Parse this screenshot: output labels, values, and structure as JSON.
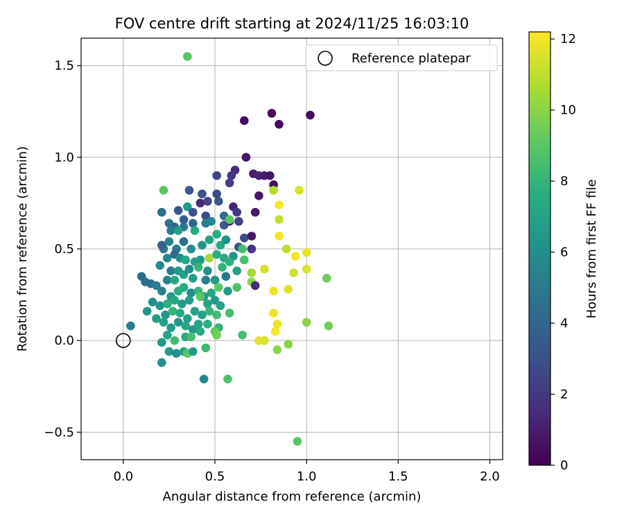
{
  "chart_data": {
    "type": "scatter",
    "title": "FOV centre drift starting at 2024/11/25 16:03:10",
    "xlabel": "Angular distance from reference (arcmin)",
    "ylabel": "Rotation from reference (arcmin)",
    "xlim": [
      -0.23,
      2.07
    ],
    "ylim": [
      -0.65,
      1.65
    ],
    "xticks": [
      0.0,
      0.5,
      1.0,
      1.5,
      2.0
    ],
    "xtick_labels": [
      "0.0",
      "0.5",
      "1.0",
      "1.5",
      "2.0"
    ],
    "yticks": [
      -0.5,
      0.0,
      0.5,
      1.0,
      1.5
    ],
    "ytick_labels": [
      "−0.5",
      "0.0",
      "0.5",
      "1.0",
      "1.5"
    ],
    "grid": true,
    "legend": {
      "placement": "upper right",
      "label": "Reference platepar",
      "marker": "open circle"
    },
    "reference_point": {
      "x": 0.0,
      "y": 0.0
    },
    "colorbar": {
      "label": "Hours from first FF file",
      "colormap": "viridis",
      "range": [
        0,
        12.2
      ],
      "ticks": [
        0,
        2,
        4,
        6,
        8,
        10,
        12
      ],
      "tick_labels": [
        "0",
        "2",
        "4",
        "6",
        "8",
        "10",
        "12"
      ]
    },
    "points": [
      {
        "x": 0.35,
        "y": 1.55,
        "t": 9.0
      },
      {
        "x": 0.81,
        "y": 1.24,
        "t": 0.3
      },
      {
        "x": 1.02,
        "y": 1.23,
        "t": 0.3
      },
      {
        "x": 0.66,
        "y": 1.2,
        "t": 0.5
      },
      {
        "x": 0.85,
        "y": 1.18,
        "t": 0.3
      },
      {
        "x": 0.67,
        "y": 1.0,
        "t": 0.7
      },
      {
        "x": 0.61,
        "y": 0.93,
        "t": 1.5
      },
      {
        "x": 0.51,
        "y": 0.9,
        "t": 2.5
      },
      {
        "x": 0.59,
        "y": 0.9,
        "t": 2.0
      },
      {
        "x": 0.71,
        "y": 0.91,
        "t": 1.0
      },
      {
        "x": 0.74,
        "y": 0.9,
        "t": 1.3
      },
      {
        "x": 0.77,
        "y": 0.9,
        "t": 0.9
      },
      {
        "x": 0.8,
        "y": 0.9,
        "t": 0.7
      },
      {
        "x": 0.58,
        "y": 0.86,
        "t": 2.2
      },
      {
        "x": 0.82,
        "y": 0.85,
        "t": 0.6
      },
      {
        "x": 0.36,
        "y": 0.82,
        "t": 3.5
      },
      {
        "x": 0.43,
        "y": 0.8,
        "t": 3.0
      },
      {
        "x": 0.51,
        "y": 0.8,
        "t": 2.8
      },
      {
        "x": 0.22,
        "y": 0.82,
        "t": 9.0
      },
      {
        "x": 0.74,
        "y": 0.79,
        "t": 0.8
      },
      {
        "x": 0.46,
        "y": 0.76,
        "t": 2.5
      },
      {
        "x": 0.52,
        "y": 0.76,
        "t": 3.2
      },
      {
        "x": 0.42,
        "y": 0.75,
        "t": 1.5
      },
      {
        "x": 0.6,
        "y": 0.73,
        "t": 1.2
      },
      {
        "x": 0.3,
        "y": 0.71,
        "t": 3.4
      },
      {
        "x": 0.35,
        "y": 0.73,
        "t": 6.5
      },
      {
        "x": 0.21,
        "y": 0.7,
        "t": 4.5
      },
      {
        "x": 0.38,
        "y": 0.7,
        "t": 3.0
      },
      {
        "x": 0.62,
        "y": 0.7,
        "t": 2.0
      },
      {
        "x": 0.72,
        "y": 0.7,
        "t": 0.9
      },
      {
        "x": 0.45,
        "y": 0.68,
        "t": 2.8
      },
      {
        "x": 0.33,
        "y": 0.66,
        "t": 3.6
      },
      {
        "x": 0.55,
        "y": 0.68,
        "t": 4.2
      },
      {
        "x": 0.25,
        "y": 0.64,
        "t": 4.5
      },
      {
        "x": 0.28,
        "y": 0.62,
        "t": 3.9
      },
      {
        "x": 0.33,
        "y": 0.62,
        "t": 4.8
      },
      {
        "x": 0.38,
        "y": 0.64,
        "t": 4.0
      },
      {
        "x": 0.45,
        "y": 0.64,
        "t": 5.0
      },
      {
        "x": 0.48,
        "y": 0.65,
        "t": 5.5
      },
      {
        "x": 0.55,
        "y": 0.63,
        "t": 3.3
      },
      {
        "x": 0.58,
        "y": 0.65,
        "t": 1.8
      },
      {
        "x": 0.63,
        "y": 0.65,
        "t": 2.4
      },
      {
        "x": 0.26,
        "y": 0.6,
        "t": 5.2
      },
      {
        "x": 0.3,
        "y": 0.6,
        "t": 6.9
      },
      {
        "x": 0.39,
        "y": 0.6,
        "t": 7.5
      },
      {
        "x": 0.51,
        "y": 0.58,
        "t": 7.6
      },
      {
        "x": 0.58,
        "y": 0.66,
        "t": 9.0
      },
      {
        "x": 0.66,
        "y": 0.56,
        "t": 2.7
      },
      {
        "x": 0.7,
        "y": 0.57,
        "t": 0.8
      },
      {
        "x": 0.22,
        "y": 0.5,
        "t": 4.7
      },
      {
        "x": 0.25,
        "y": 0.54,
        "t": 5.5
      },
      {
        "x": 0.29,
        "y": 0.5,
        "t": 5.0
      },
      {
        "x": 0.33,
        "y": 0.54,
        "t": 4.5
      },
      {
        "x": 0.37,
        "y": 0.5,
        "t": 6.0
      },
      {
        "x": 0.43,
        "y": 0.52,
        "t": 6.3
      },
      {
        "x": 0.47,
        "y": 0.55,
        "t": 7.0
      },
      {
        "x": 0.53,
        "y": 0.52,
        "t": 7.2
      },
      {
        "x": 0.56,
        "y": 0.55,
        "t": 6.2
      },
      {
        "x": 0.63,
        "y": 0.51,
        "t": 3.0
      },
      {
        "x": 0.65,
        "y": 0.5,
        "t": 8.5
      },
      {
        "x": 0.7,
        "y": 0.5,
        "t": 1.8
      },
      {
        "x": 0.21,
        "y": 0.52,
        "t": 3.6
      },
      {
        "x": 0.24,
        "y": 0.45,
        "t": 5.5
      },
      {
        "x": 0.28,
        "y": 0.47,
        "t": 4.2
      },
      {
        "x": 0.31,
        "y": 0.45,
        "t": 6.0
      },
      {
        "x": 0.34,
        "y": 0.44,
        "t": 7.2
      },
      {
        "x": 0.39,
        "y": 0.43,
        "t": 7.0
      },
      {
        "x": 0.42,
        "y": 0.44,
        "t": 6.6
      },
      {
        "x": 0.47,
        "y": 0.45,
        "t": 10.5
      },
      {
        "x": 0.51,
        "y": 0.47,
        "t": 7.5
      },
      {
        "x": 0.55,
        "y": 0.45,
        "t": 7.3
      },
      {
        "x": 0.6,
        "y": 0.46,
        "t": 6.3
      },
      {
        "x": 0.66,
        "y": 0.44,
        "t": 8.5
      },
      {
        "x": 0.2,
        "y": 0.41,
        "t": 5.7
      },
      {
        "x": 0.26,
        "y": 0.38,
        "t": 5.0
      },
      {
        "x": 0.3,
        "y": 0.38,
        "t": 6.5
      },
      {
        "x": 0.36,
        "y": 0.39,
        "t": 5.8
      },
      {
        "x": 0.41,
        "y": 0.4,
        "t": 8.0
      },
      {
        "x": 0.46,
        "y": 0.38,
        "t": 6.0
      },
      {
        "x": 0.54,
        "y": 0.4,
        "t": 8.0
      },
      {
        "x": 0.58,
        "y": 0.43,
        "t": 7.8
      },
      {
        "x": 0.1,
        "y": 0.35,
        "t": 4.3
      },
      {
        "x": 0.15,
        "y": 0.31,
        "t": 4.6
      },
      {
        "x": 0.12,
        "y": 0.32,
        "t": 4.4
      },
      {
        "x": 0.18,
        "y": 0.3,
        "t": 5.0
      },
      {
        "x": 0.24,
        "y": 0.33,
        "t": 5.4
      },
      {
        "x": 0.28,
        "y": 0.33,
        "t": 7.3
      },
      {
        "x": 0.33,
        "y": 0.36,
        "t": 6.8
      },
      {
        "x": 0.38,
        "y": 0.34,
        "t": 6.7
      },
      {
        "x": 0.45,
        "y": 0.33,
        "t": 5.0
      },
      {
        "x": 0.5,
        "y": 0.33,
        "t": 6.5
      },
      {
        "x": 0.56,
        "y": 0.35,
        "t": 4.8
      },
      {
        "x": 0.62,
        "y": 0.38,
        "t": 7.0
      },
      {
        "x": 0.21,
        "y": 0.27,
        "t": 5.3
      },
      {
        "x": 0.26,
        "y": 0.24,
        "t": 6.4
      },
      {
        "x": 0.3,
        "y": 0.27,
        "t": 7.6
      },
      {
        "x": 0.33,
        "y": 0.29,
        "t": 7.5
      },
      {
        "x": 0.37,
        "y": 0.26,
        "t": 5.9
      },
      {
        "x": 0.41,
        "y": 0.27,
        "t": 8.0
      },
      {
        "x": 0.44,
        "y": 0.24,
        "t": 6.4
      },
      {
        "x": 0.48,
        "y": 0.26,
        "t": 7.3
      },
      {
        "x": 0.52,
        "y": 0.29,
        "t": 9.0
      },
      {
        "x": 0.57,
        "y": 0.27,
        "t": 6.7
      },
      {
        "x": 0.62,
        "y": 0.29,
        "t": 8.7
      },
      {
        "x": 0.16,
        "y": 0.21,
        "t": 6.0
      },
      {
        "x": 0.2,
        "y": 0.19,
        "t": 6.3
      },
      {
        "x": 0.24,
        "y": 0.2,
        "t": 7.7
      },
      {
        "x": 0.28,
        "y": 0.22,
        "t": 7.2
      },
      {
        "x": 0.32,
        "y": 0.2,
        "t": 6.6
      },
      {
        "x": 0.36,
        "y": 0.22,
        "t": 6.7
      },
      {
        "x": 0.42,
        "y": 0.24,
        "t": 9.0
      },
      {
        "x": 0.46,
        "y": 0.2,
        "t": 7.0
      },
      {
        "x": 0.5,
        "y": 0.22,
        "t": 6.5
      },
      {
        "x": 0.53,
        "y": 0.19,
        "t": 7.0
      },
      {
        "x": 0.13,
        "y": 0.16,
        "t": 6.4
      },
      {
        "x": 0.18,
        "y": 0.12,
        "t": 6.8
      },
      {
        "x": 0.23,
        "y": 0.14,
        "t": 6.3
      },
      {
        "x": 0.27,
        "y": 0.16,
        "t": 8.0
      },
      {
        "x": 0.31,
        "y": 0.15,
        "t": 7.3
      },
      {
        "x": 0.35,
        "y": 0.12,
        "t": 6.8
      },
      {
        "x": 0.39,
        "y": 0.16,
        "t": 7.0
      },
      {
        "x": 0.43,
        "y": 0.14,
        "t": 6.9
      },
      {
        "x": 0.47,
        "y": 0.16,
        "t": 8.0
      },
      {
        "x": 0.51,
        "y": 0.14,
        "t": 8.4
      },
      {
        "x": 0.22,
        "y": 0.1,
        "t": 6.8
      },
      {
        "x": 0.26,
        "y": 0.07,
        "t": 6.6
      },
      {
        "x": 0.3,
        "y": 0.1,
        "t": 6.4
      },
      {
        "x": 0.34,
        "y": 0.08,
        "t": 7.1
      },
      {
        "x": 0.38,
        "y": 0.06,
        "t": 6.5
      },
      {
        "x": 0.41,
        "y": 0.09,
        "t": 7.0
      },
      {
        "x": 0.46,
        "y": 0.09,
        "t": 7.6
      },
      {
        "x": 0.52,
        "y": 0.07,
        "t": 7.8
      },
      {
        "x": 0.58,
        "y": 0.15,
        "t": 8.5
      },
      {
        "x": 0.04,
        "y": 0.08,
        "t": 5.0
      },
      {
        "x": 0.24,
        "y": 0.03,
        "t": 7.0
      },
      {
        "x": 0.28,
        "y": 0.0,
        "t": 8.3
      },
      {
        "x": 0.34,
        "y": 0.02,
        "t": 7.3
      },
      {
        "x": 0.37,
        "y": 0.02,
        "t": 8.5
      },
      {
        "x": 0.42,
        "y": 0.05,
        "t": 7.4
      },
      {
        "x": 0.5,
        "y": 0.05,
        "t": 9.2
      },
      {
        "x": 0.51,
        "y": 0.03,
        "t": 9.5
      },
      {
        "x": 0.65,
        "y": 0.03,
        "t": 8.5
      },
      {
        "x": 0.21,
        "y": -0.01,
        "t": 6.4
      },
      {
        "x": 0.25,
        "y": -0.06,
        "t": 6.6
      },
      {
        "x": 0.29,
        "y": -0.07,
        "t": 6.0
      },
      {
        "x": 0.33,
        "y": -0.06,
        "t": 7.0
      },
      {
        "x": 0.35,
        "y": -0.07,
        "t": 9.0
      },
      {
        "x": 0.38,
        "y": -0.06,
        "t": 6.8
      },
      {
        "x": 0.45,
        "y": -0.04,
        "t": 8.2
      },
      {
        "x": 0.21,
        "y": -0.12,
        "t": 6.0
      },
      {
        "x": 0.44,
        "y": -0.21,
        "t": 5.7
      },
      {
        "x": 0.57,
        "y": -0.21,
        "t": 8.6
      },
      {
        "x": 0.95,
        "y": -0.55,
        "t": 9.0
      },
      {
        "x": 0.96,
        "y": 0.82,
        "t": 11.5
      },
      {
        "x": 0.85,
        "y": 0.74,
        "t": 12.0
      },
      {
        "x": 0.85,
        "y": 0.66,
        "t": 11.0
      },
      {
        "x": 0.85,
        "y": 0.57,
        "t": 12.0
      },
      {
        "x": 0.89,
        "y": 0.5,
        "t": 11.0
      },
      {
        "x": 0.94,
        "y": 0.46,
        "t": 12.0
      },
      {
        "x": 1.0,
        "y": 0.48,
        "t": 11.8
      },
      {
        "x": 0.77,
        "y": 0.39,
        "t": 11.5
      },
      {
        "x": 0.93,
        "y": 0.37,
        "t": 11.3
      },
      {
        "x": 1.0,
        "y": 0.39,
        "t": 11.5
      },
      {
        "x": 0.7,
        "y": 0.37,
        "t": 10.5
      },
      {
        "x": 0.7,
        "y": 0.32,
        "t": 10.0
      },
      {
        "x": 0.72,
        "y": 0.3,
        "t": 1.5
      },
      {
        "x": 0.82,
        "y": 0.27,
        "t": 11.8
      },
      {
        "x": 0.9,
        "y": 0.28,
        "t": 11.6
      },
      {
        "x": 0.82,
        "y": 0.15,
        "t": 12.0
      },
      {
        "x": 1.11,
        "y": 0.34,
        "t": 9.5
      },
      {
        "x": 1.0,
        "y": 0.1,
        "t": 10.0
      },
      {
        "x": 1.12,
        "y": 0.08,
        "t": 9.5
      },
      {
        "x": 0.84,
        "y": 0.09,
        "t": 11.8
      },
      {
        "x": 0.83,
        "y": 0.05,
        "t": 12.0
      },
      {
        "x": 0.74,
        "y": 0.0,
        "t": 11.8
      },
      {
        "x": 0.77,
        "y": 0.0,
        "t": 11.5
      },
      {
        "x": 0.9,
        "y": -0.02,
        "t": 10.0
      },
      {
        "x": 0.84,
        "y": -0.05,
        "t": 10.0
      },
      {
        "x": 0.82,
        "y": 0.82,
        "t": 10.8
      }
    ]
  }
}
